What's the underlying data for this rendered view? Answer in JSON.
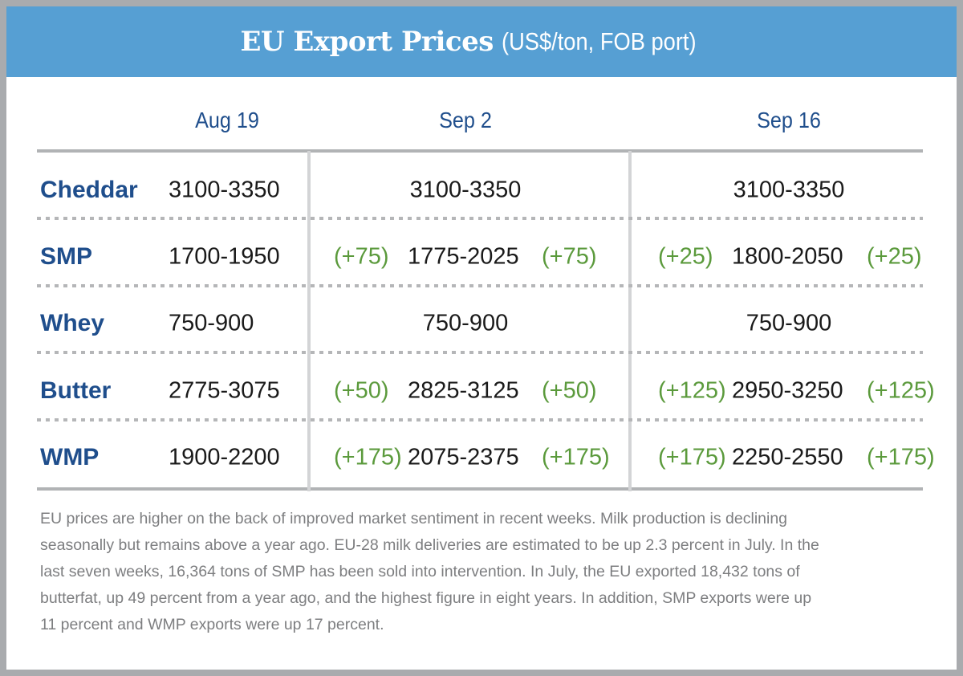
{
  "header": {
    "title": "EU Export Prices",
    "subtitle": "(US$/ton, FOB port)",
    "color": "#569fd3"
  },
  "colors": {
    "label": "#1f4e8c",
    "change": "#5b9a3c",
    "value": "#1a1a1a",
    "note": "#7d7e80"
  },
  "chart_data": {
    "type": "table",
    "title": "EU Export Prices",
    "subtitle": "(US$/ton, FOB port)",
    "columns": [
      "Aug 19",
      "Sep 2",
      "Sep 16"
    ],
    "rows": [
      {
        "product": "Cheddar",
        "aug19": "3100-3350",
        "sep2": {
          "change_low": "",
          "value": "3100-3350",
          "change_high": ""
        },
        "sep16": {
          "change_low": "",
          "value": "3100-3350",
          "change_high": ""
        }
      },
      {
        "product": "SMP",
        "aug19": "1700-1950",
        "sep2": {
          "change_low": "(+75)",
          "value": "1775-2025",
          "change_high": "(+75)"
        },
        "sep16": {
          "change_low": "(+25)",
          "value": "1800-2050",
          "change_high": "(+25)"
        }
      },
      {
        "product": "Whey",
        "aug19": "750-900",
        "sep2": {
          "change_low": "",
          "value": "750-900",
          "change_high": ""
        },
        "sep16": {
          "change_low": "",
          "value": "750-900",
          "change_high": ""
        }
      },
      {
        "product": "Butter",
        "aug19": "2775-3075",
        "sep2": {
          "change_low": "(+50)",
          "value": "2825-3125",
          "change_high": "(+50)"
        },
        "sep16": {
          "change_low": "(+125)",
          "value": "2950-3250",
          "change_high": "(+125)"
        }
      },
      {
        "product": "WMP",
        "aug19": "1900-2200",
        "sep2": {
          "change_low": "(+175)",
          "value": "2075-2375",
          "change_high": "(+175)"
        },
        "sep16": {
          "change_low": "(+175)",
          "value": "2250-2550",
          "change_high": "(+175)"
        }
      }
    ]
  },
  "note": {
    "lines": [
      "EU prices are higher on the back of improved market sentiment in recent weeks. Milk production is declining",
      "seasonally but remains above a year ago. EU-28 milk deliveries are estimated to be up 2.3 percent in July. In the",
      "last seven weeks, 16,364 tons of SMP has been sold into intervention. In July, the EU exported 18,432 tons of",
      "butterfat, up 49 percent from a year ago, and the highest figure in eight years. In addition, SMP exports were up",
      "11 percent and WMP exports were up 17 percent."
    ]
  }
}
